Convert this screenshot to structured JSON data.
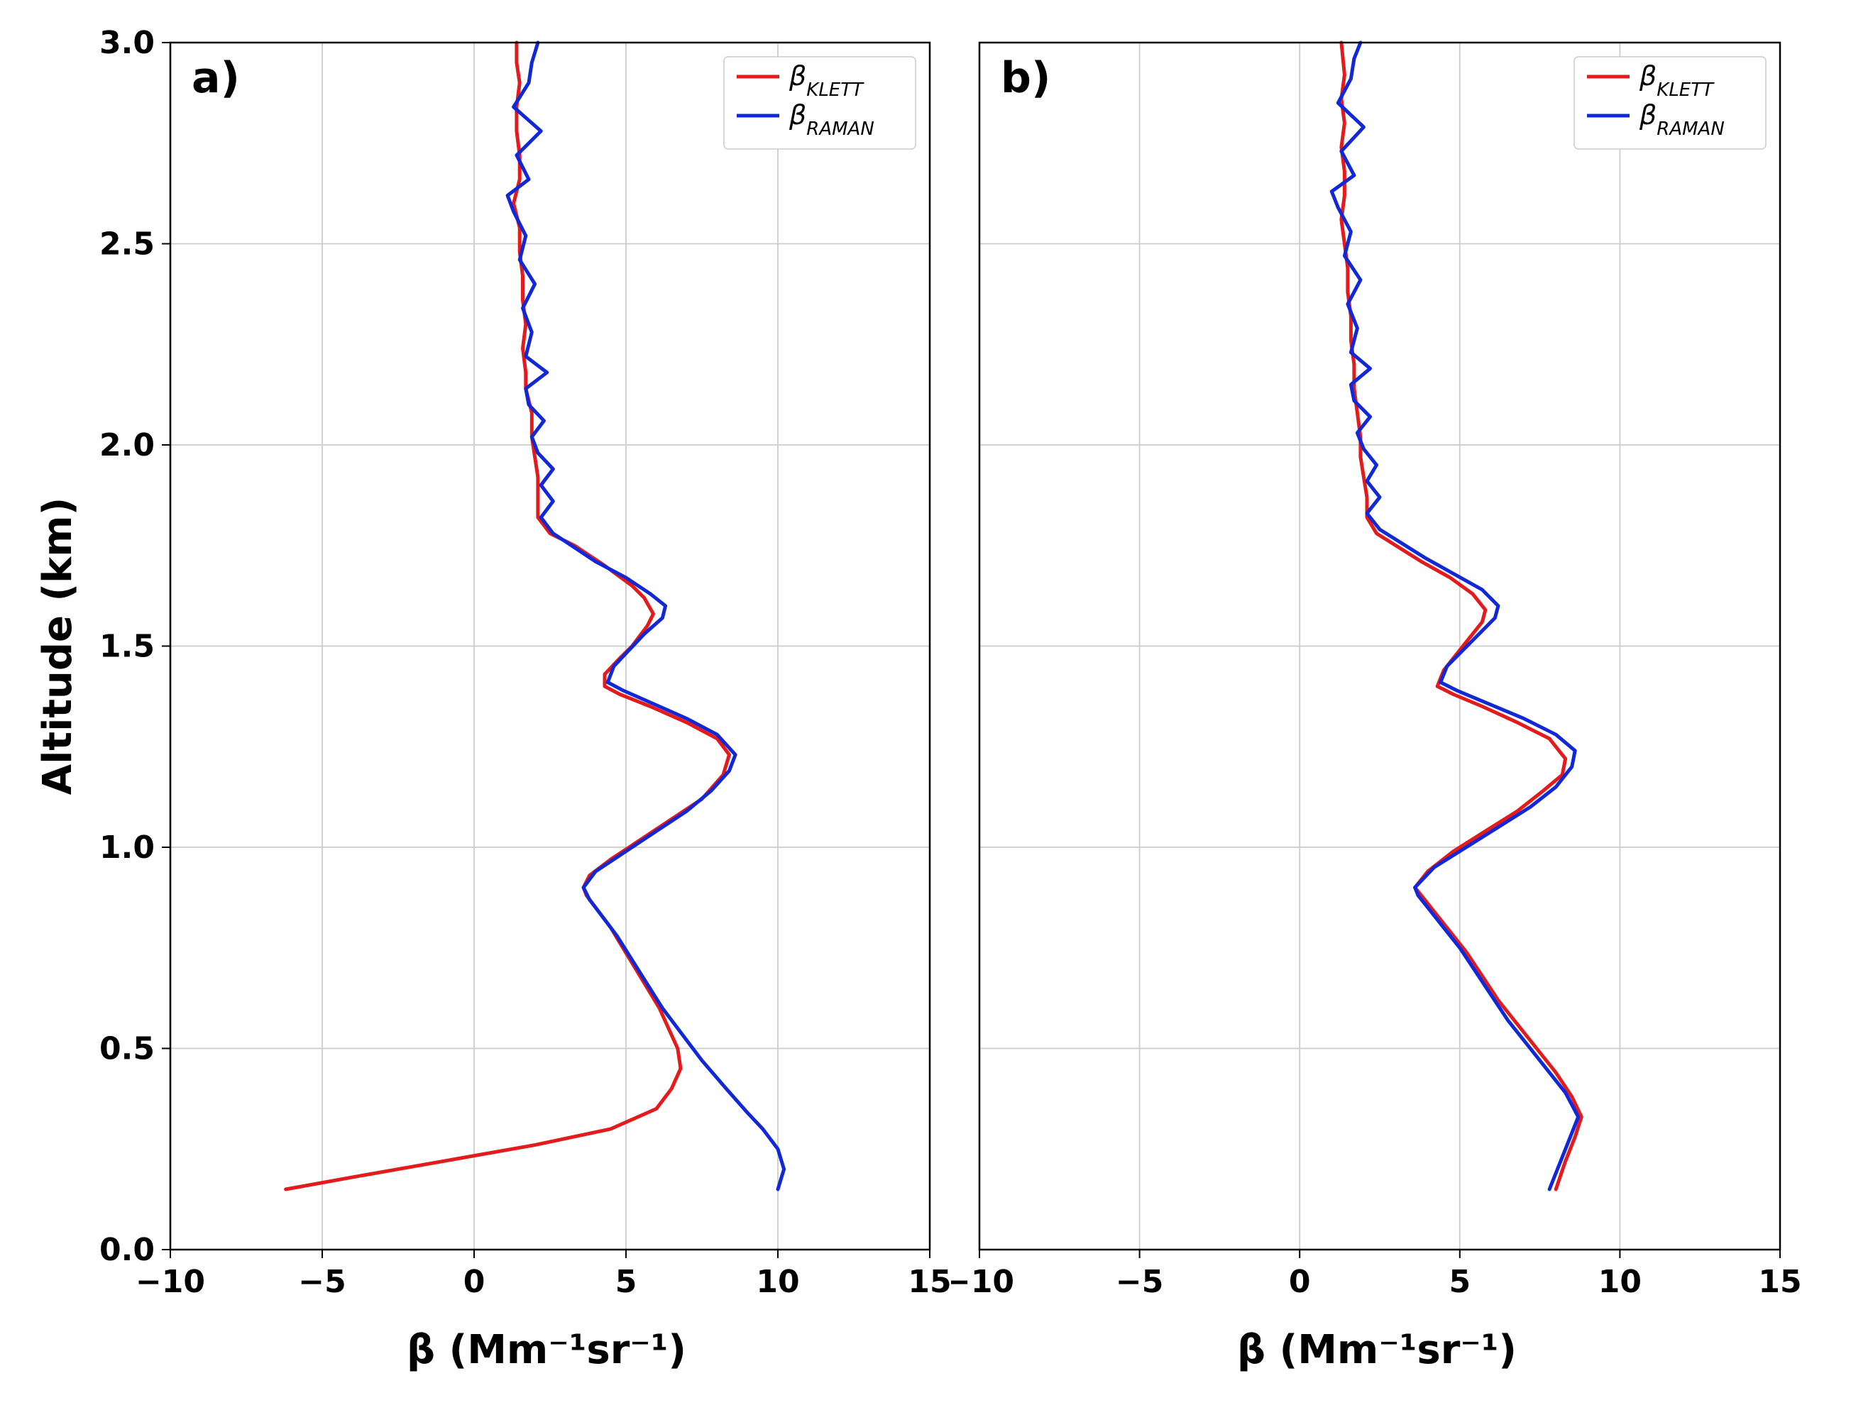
{
  "figure": {
    "background_color": "#ffffff",
    "grid_color": "#cccccc",
    "axis_color": "#000000",
    "font_family": "DejaVu Sans",
    "x_label": "β (Mm⁻¹sr⁻¹)",
    "y_label": "Altitude (km)",
    "x_label_fontsize": 56,
    "y_label_fontsize": 56,
    "tick_fontsize": 44,
    "panel_tag_fontsize": 60,
    "line_width": 5,
    "xlim": [
      -10,
      15
    ],
    "ylim": [
      0,
      3.0
    ],
    "xtick_step": 5,
    "ytick_step": 0.5,
    "legend": {
      "items": [
        {
          "symbol": "β",
          "sub": "KLETT",
          "color": "#e31b1c"
        },
        {
          "symbol": "β",
          "sub": "RAMAN",
          "color": "#1128d8"
        }
      ],
      "box_stroke": "#cccccc",
      "box_fill": "#ffffff",
      "text_fontsize": 38,
      "sub_fontsize": 26
    },
    "panels": [
      {
        "tag": "a)",
        "series": {
          "klett": {
            "color": "#e31b1c",
            "points": [
              [
                -6.2,
                0.15
              ],
              [
                -4.0,
                0.18
              ],
              [
                -1.0,
                0.22
              ],
              [
                2.0,
                0.26
              ],
              [
                4.5,
                0.3
              ],
              [
                6.0,
                0.35
              ],
              [
                6.5,
                0.4
              ],
              [
                6.8,
                0.45
              ],
              [
                6.7,
                0.5
              ],
              [
                6.4,
                0.55
              ],
              [
                6.1,
                0.6
              ],
              [
                5.7,
                0.65
              ],
              [
                5.3,
                0.7
              ],
              [
                4.9,
                0.75
              ],
              [
                4.5,
                0.8
              ],
              [
                4.0,
                0.85
              ],
              [
                3.7,
                0.88
              ],
              [
                3.6,
                0.9
              ],
              [
                3.8,
                0.93
              ],
              [
                4.5,
                0.97
              ],
              [
                5.5,
                1.02
              ],
              [
                6.5,
                1.07
              ],
              [
                7.5,
                1.12
              ],
              [
                8.2,
                1.18
              ],
              [
                8.4,
                1.23
              ],
              [
                8.0,
                1.27
              ],
              [
                7.0,
                1.31
              ],
              [
                5.8,
                1.35
              ],
              [
                4.8,
                1.38
              ],
              [
                4.3,
                1.4
              ],
              [
                4.3,
                1.43
              ],
              [
                4.8,
                1.47
              ],
              [
                5.2,
                1.5
              ],
              [
                5.7,
                1.55
              ],
              [
                5.9,
                1.58
              ],
              [
                5.6,
                1.62
              ],
              [
                5.2,
                1.65
              ],
              [
                4.3,
                1.7
              ],
              [
                3.3,
                1.75
              ],
              [
                2.5,
                1.78
              ],
              [
                2.1,
                1.82
              ],
              [
                2.1,
                1.87
              ],
              [
                2.1,
                1.92
              ],
              [
                2.0,
                1.97
              ],
              [
                1.9,
                2.02
              ],
              [
                1.9,
                2.08
              ],
              [
                1.7,
                2.14
              ],
              [
                1.7,
                2.18
              ],
              [
                1.6,
                2.24
              ],
              [
                1.7,
                2.3
              ],
              [
                1.6,
                2.36
              ],
              [
                1.6,
                2.42
              ],
              [
                1.5,
                2.48
              ],
              [
                1.5,
                2.54
              ],
              [
                1.3,
                2.6
              ],
              [
                1.5,
                2.66
              ],
              [
                1.5,
                2.72
              ],
              [
                1.4,
                2.78
              ],
              [
                1.4,
                2.84
              ],
              [
                1.5,
                2.9
              ],
              [
                1.4,
                2.95
              ],
              [
                1.4,
                3.0
              ]
            ]
          },
          "raman": {
            "color": "#1128d8",
            "points": [
              [
                10.0,
                0.15
              ],
              [
                10.2,
                0.2
              ],
              [
                10.0,
                0.25
              ],
              [
                9.5,
                0.3
              ],
              [
                9.0,
                0.34
              ],
              [
                8.3,
                0.4
              ],
              [
                7.5,
                0.47
              ],
              [
                6.8,
                0.54
              ],
              [
                6.2,
                0.6
              ],
              [
                5.7,
                0.66
              ],
              [
                5.2,
                0.72
              ],
              [
                4.7,
                0.78
              ],
              [
                4.2,
                0.83
              ],
              [
                3.8,
                0.87
              ],
              [
                3.6,
                0.9
              ],
              [
                4.0,
                0.94
              ],
              [
                5.0,
                0.99
              ],
              [
                6.0,
                1.04
              ],
              [
                7.0,
                1.09
              ],
              [
                7.8,
                1.14
              ],
              [
                8.4,
                1.19
              ],
              [
                8.6,
                1.23
              ],
              [
                8.0,
                1.28
              ],
              [
                7.0,
                1.32
              ],
              [
                5.8,
                1.36
              ],
              [
                4.9,
                1.39
              ],
              [
                4.4,
                1.41
              ],
              [
                4.6,
                1.45
              ],
              [
                5.1,
                1.49
              ],
              [
                5.6,
                1.53
              ],
              [
                6.2,
                1.57
              ],
              [
                6.3,
                1.6
              ],
              [
                5.8,
                1.63
              ],
              [
                5.0,
                1.67
              ],
              [
                4.0,
                1.71
              ],
              [
                3.2,
                1.75
              ],
              [
                2.6,
                1.78
              ],
              [
                2.2,
                1.82
              ],
              [
                2.6,
                1.86
              ],
              [
                2.2,
                1.9
              ],
              [
                2.6,
                1.94
              ],
              [
                2.1,
                1.98
              ],
              [
                1.9,
                2.02
              ],
              [
                2.3,
                2.06
              ],
              [
                1.8,
                2.1
              ],
              [
                1.7,
                2.14
              ],
              [
                2.4,
                2.18
              ],
              [
                1.7,
                2.22
              ],
              [
                1.9,
                2.28
              ],
              [
                1.6,
                2.34
              ],
              [
                2.0,
                2.4
              ],
              [
                1.5,
                2.46
              ],
              [
                1.7,
                2.52
              ],
              [
                1.3,
                2.58
              ],
              [
                1.1,
                2.62
              ],
              [
                1.8,
                2.66
              ],
              [
                1.4,
                2.72
              ],
              [
                2.2,
                2.78
              ],
              [
                1.3,
                2.84
              ],
              [
                1.8,
                2.9
              ],
              [
                1.9,
                2.95
              ],
              [
                2.1,
                3.0
              ]
            ]
          }
        }
      },
      {
        "tag": "b)",
        "series": {
          "klett": {
            "color": "#e31b1c",
            "points": [
              [
                8.0,
                0.15
              ],
              [
                8.3,
                0.22
              ],
              [
                8.6,
                0.28
              ],
              [
                8.8,
                0.33
              ],
              [
                8.5,
                0.38
              ],
              [
                8.0,
                0.44
              ],
              [
                7.4,
                0.5
              ],
              [
                6.8,
                0.56
              ],
              [
                6.2,
                0.62
              ],
              [
                5.7,
                0.68
              ],
              [
                5.2,
                0.74
              ],
              [
                4.7,
                0.79
              ],
              [
                4.2,
                0.84
              ],
              [
                3.8,
                0.88
              ],
              [
                3.6,
                0.9
              ],
              [
                4.0,
                0.94
              ],
              [
                4.8,
                0.99
              ],
              [
                5.8,
                1.04
              ],
              [
                6.8,
                1.09
              ],
              [
                7.6,
                1.14
              ],
              [
                8.2,
                1.18
              ],
              [
                8.3,
                1.22
              ],
              [
                7.8,
                1.27
              ],
              [
                6.8,
                1.31
              ],
              [
                5.7,
                1.35
              ],
              [
                4.8,
                1.38
              ],
              [
                4.3,
                1.4
              ],
              [
                4.5,
                1.44
              ],
              [
                4.9,
                1.48
              ],
              [
                5.3,
                1.52
              ],
              [
                5.7,
                1.56
              ],
              [
                5.8,
                1.59
              ],
              [
                5.4,
                1.63
              ],
              [
                4.7,
                1.67
              ],
              [
                3.8,
                1.71
              ],
              [
                3.0,
                1.75
              ],
              [
                2.4,
                1.78
              ],
              [
                2.1,
                1.82
              ],
              [
                2.1,
                1.87
              ],
              [
                2.0,
                1.92
              ],
              [
                1.9,
                1.97
              ],
              [
                1.9,
                2.02
              ],
              [
                1.8,
                2.08
              ],
              [
                1.7,
                2.14
              ],
              [
                1.7,
                2.2
              ],
              [
                1.6,
                2.26
              ],
              [
                1.6,
                2.32
              ],
              [
                1.5,
                2.38
              ],
              [
                1.5,
                2.44
              ],
              [
                1.4,
                2.5
              ],
              [
                1.3,
                2.56
              ],
              [
                1.4,
                2.62
              ],
              [
                1.4,
                2.68
              ],
              [
                1.3,
                2.74
              ],
              [
                1.4,
                2.8
              ],
              [
                1.3,
                2.86
              ],
              [
                1.4,
                2.92
              ],
              [
                1.3,
                3.0
              ]
            ]
          },
          "raman": {
            "color": "#1128d8",
            "points": [
              [
                7.8,
                0.15
              ],
              [
                8.1,
                0.21
              ],
              [
                8.4,
                0.27
              ],
              [
                8.7,
                0.33
              ],
              [
                8.3,
                0.39
              ],
              [
                7.7,
                0.45
              ],
              [
                7.1,
                0.51
              ],
              [
                6.5,
                0.57
              ],
              [
                6.0,
                0.63
              ],
              [
                5.5,
                0.69
              ],
              [
                5.0,
                0.75
              ],
              [
                4.5,
                0.8
              ],
              [
                4.0,
                0.85
              ],
              [
                3.7,
                0.88
              ],
              [
                3.6,
                0.9
              ],
              [
                4.2,
                0.95
              ],
              [
                5.2,
                1.0
              ],
              [
                6.2,
                1.05
              ],
              [
                7.2,
                1.1
              ],
              [
                8.0,
                1.15
              ],
              [
                8.5,
                1.2
              ],
              [
                8.6,
                1.24
              ],
              [
                8.0,
                1.28
              ],
              [
                7.0,
                1.32
              ],
              [
                5.8,
                1.36
              ],
              [
                4.9,
                1.39
              ],
              [
                4.4,
                1.41
              ],
              [
                4.6,
                1.45
              ],
              [
                5.1,
                1.49
              ],
              [
                5.6,
                1.53
              ],
              [
                6.1,
                1.57
              ],
              [
                6.2,
                1.6
              ],
              [
                5.7,
                1.64
              ],
              [
                4.8,
                1.68
              ],
              [
                3.9,
                1.72
              ],
              [
                3.1,
                1.76
              ],
              [
                2.5,
                1.79
              ],
              [
                2.1,
                1.83
              ],
              [
                2.5,
                1.87
              ],
              [
                2.1,
                1.91
              ],
              [
                2.4,
                1.95
              ],
              [
                2.0,
                1.99
              ],
              [
                1.8,
                2.03
              ],
              [
                2.2,
                2.07
              ],
              [
                1.7,
                2.11
              ],
              [
                1.6,
                2.15
              ],
              [
                2.2,
                2.19
              ],
              [
                1.6,
                2.23
              ],
              [
                1.8,
                2.29
              ],
              [
                1.5,
                2.35
              ],
              [
                1.9,
                2.41
              ],
              [
                1.4,
                2.47
              ],
              [
                1.6,
                2.53
              ],
              [
                1.2,
                2.59
              ],
              [
                1.0,
                2.63
              ],
              [
                1.7,
                2.67
              ],
              [
                1.3,
                2.73
              ],
              [
                2.0,
                2.79
              ],
              [
                1.2,
                2.85
              ],
              [
                1.6,
                2.91
              ],
              [
                1.7,
                2.96
              ],
              [
                1.9,
                3.0
              ]
            ]
          }
        }
      }
    ]
  }
}
